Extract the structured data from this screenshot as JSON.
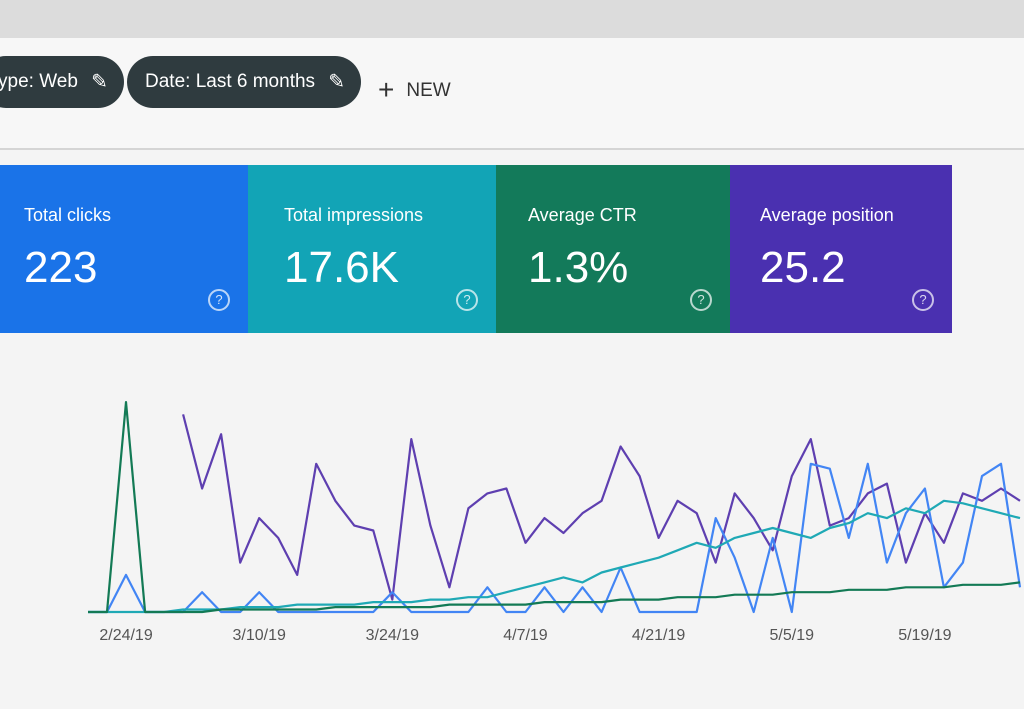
{
  "filters": [
    "ype: Web",
    "Date: Last 6 months"
  ],
  "new_button": "NEW",
  "metrics": [
    {
      "label": "Total clicks",
      "value": "223"
    },
    {
      "label": "Total impressions",
      "value": "17.6K"
    },
    {
      "label": "Average CTR",
      "value": "1.3%"
    },
    {
      "label": "Average position",
      "value": "25.2"
    }
  ],
  "chart_data": {
    "type": "line",
    "categories": [
      null,
      null,
      "2/24/19",
      null,
      null,
      null,
      null,
      null,
      null,
      "3/10/19",
      null,
      null,
      null,
      null,
      null,
      null,
      "3/24/19",
      null,
      null,
      null,
      null,
      null,
      null,
      "4/7/19",
      null,
      null,
      null,
      null,
      null,
      null,
      "4/21/19",
      null,
      null,
      null,
      null,
      null,
      null,
      "5/5/19",
      null,
      null,
      null,
      null,
      null,
      null,
      "5/19/19",
      null,
      null,
      null,
      null,
      null
    ],
    "ylim": [
      0,
      100
    ],
    "series": [
      {
        "color": "#5e3fb0",
        "values": [
          null,
          null,
          null,
          null,
          null,
          80,
          50,
          72,
          20,
          38,
          30,
          15,
          60,
          45,
          35,
          33,
          5,
          70,
          35,
          10,
          42,
          48,
          50,
          28,
          38,
          32,
          40,
          45,
          67,
          55,
          30,
          45,
          40,
          20,
          48,
          38,
          25,
          55,
          70,
          35,
          38,
          48,
          52,
          20,
          40,
          28,
          48,
          45,
          50,
          45
        ]
      },
      {
        "color": "#4285f4",
        "values": [
          0,
          0,
          15,
          0,
          0,
          0,
          8,
          0,
          0,
          8,
          0,
          0,
          0,
          0,
          0,
          0,
          8,
          0,
          0,
          0,
          0,
          10,
          0,
          0,
          10,
          0,
          10,
          0,
          18,
          0,
          0,
          0,
          0,
          38,
          22,
          0,
          30,
          0,
          60,
          58,
          30,
          60,
          20,
          40,
          50,
          10,
          20,
          55,
          60,
          10
        ]
      },
      {
        "color": "#1fa9b5",
        "values": [
          0,
          0,
          0,
          0,
          0,
          1,
          1,
          1,
          2,
          2,
          2,
          3,
          3,
          3,
          3,
          4,
          4,
          4,
          5,
          5,
          6,
          6,
          8,
          10,
          12,
          14,
          12,
          16,
          18,
          20,
          22,
          25,
          28,
          26,
          30,
          32,
          34,
          32,
          30,
          34,
          36,
          40,
          38,
          42,
          40,
          45,
          44,
          42,
          40,
          38
        ]
      },
      {
        "color": "#137a55",
        "values": [
          0,
          0,
          85,
          0,
          0,
          0,
          0,
          1,
          1,
          1,
          1,
          1,
          1,
          2,
          2,
          2,
          2,
          2,
          2,
          3,
          3,
          3,
          3,
          3,
          4,
          4,
          4,
          4,
          5,
          5,
          5,
          6,
          6,
          6,
          7,
          7,
          7,
          8,
          8,
          8,
          9,
          9,
          9,
          10,
          10,
          10,
          11,
          11,
          11,
          12
        ]
      }
    ]
  }
}
